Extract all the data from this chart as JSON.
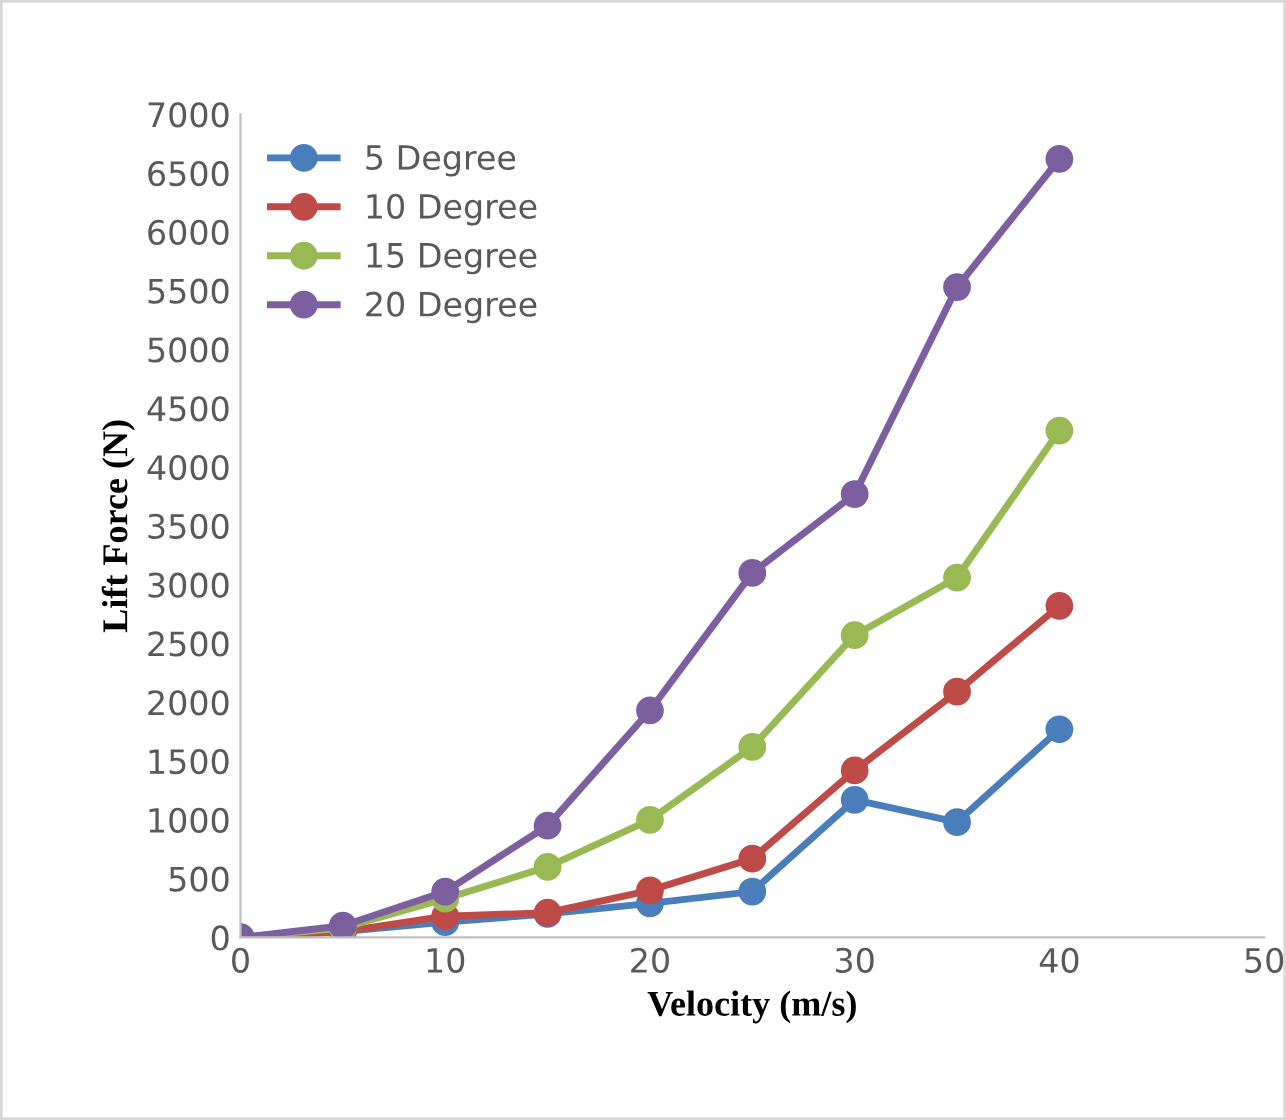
{
  "chart_data": {
    "type": "line",
    "xlabel": "Velocity (m/s)",
    "ylabel": "Lift Force (N)",
    "x": [
      0,
      5,
      10,
      15,
      20,
      25,
      30,
      35,
      40
    ],
    "series": [
      {
        "name": "5 Degree",
        "color": "#4a7ebb",
        "values": [
          0,
          50,
          130,
          200,
          290,
          390,
          1170,
          980,
          1770
        ]
      },
      {
        "name": "10 Degree",
        "color": "#be4b48",
        "values": [
          0,
          50,
          180,
          210,
          400,
          670,
          1420,
          2090,
          2820
        ]
      },
      {
        "name": "15 Degree",
        "color": "#98b954",
        "values": [
          0,
          80,
          330,
          600,
          1000,
          1620,
          2570,
          3060,
          4310
        ]
      },
      {
        "name": "20 Degree",
        "color": "#7d5fa0",
        "values": [
          0,
          100,
          390,
          950,
          1930,
          3100,
          3770,
          5530,
          6620
        ]
      }
    ],
    "xlim": [
      0,
      50
    ],
    "xticks": [
      0,
      10,
      20,
      30,
      40,
      50
    ],
    "ylim": [
      0,
      7000
    ],
    "yticks": [
      0,
      500,
      1000,
      1500,
      2000,
      2500,
      3000,
      3500,
      4000,
      4500,
      5000,
      5500,
      6000,
      6500,
      7000
    ],
    "grid": false,
    "legend": "top left",
    "marker": "circle",
    "line_style": "solid"
  }
}
